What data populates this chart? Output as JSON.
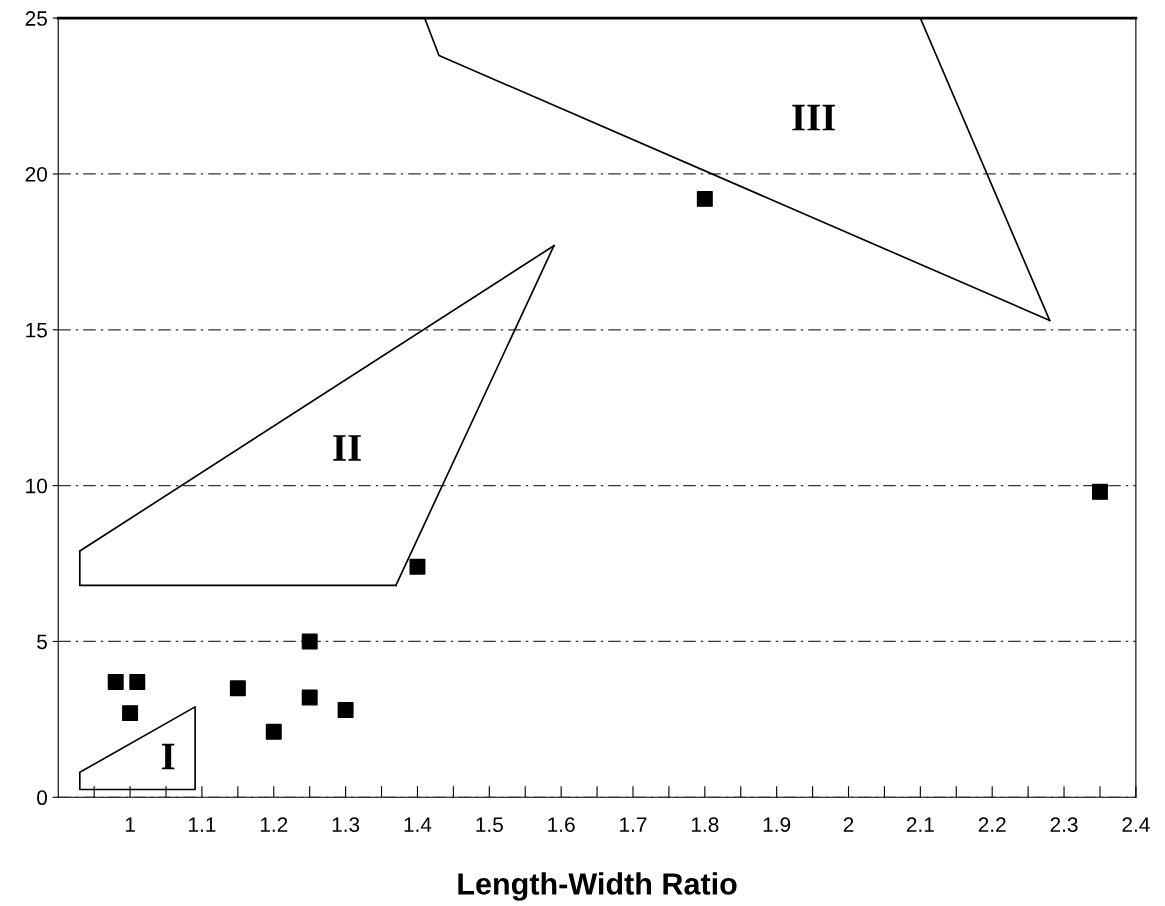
{
  "chart_data": {
    "type": "scatter",
    "xlabel": "Length-Width Ratio",
    "xlim": [
      0.9,
      2.4
    ],
    "ylim": [
      0,
      25
    ],
    "xticks": [
      {
        "value": 0.95,
        "label": null
      },
      1,
      {
        "value": 1.05,
        "label": null
      },
      1.1,
      {
        "value": 1.15,
        "label": null
      },
      1.2,
      {
        "value": 1.25,
        "label": null
      },
      1.3,
      {
        "value": 1.35,
        "label": null
      },
      1.4,
      {
        "value": 1.45,
        "label": null
      },
      1.5,
      {
        "value": 1.55,
        "label": null
      },
      1.6,
      {
        "value": 1.65,
        "label": null
      },
      1.7,
      {
        "value": 1.75,
        "label": null
      },
      1.8,
      {
        "value": 1.85,
        "label": null
      },
      1.9,
      {
        "value": 1.95,
        "label": null
      },
      2,
      {
        "value": 2.05,
        "label": null
      },
      2.1,
      {
        "value": 2.15,
        "label": null
      },
      2.2,
      {
        "value": 2.25,
        "label": null
      },
      2.3,
      {
        "value": 2.35,
        "label": null
      },
      2.4
    ],
    "yticks": [
      0,
      5,
      10,
      15,
      20,
      25
    ],
    "grid": "y",
    "series": [
      {
        "color": "#000000",
        "marker": "square",
        "x": [
          0.98,
          1.01,
          1.0,
          1.15,
          1.2,
          1.25,
          1.25,
          1.3,
          1.4,
          1.8,
          2.35
        ],
        "values": [
          3.7,
          3.7,
          2.7,
          3.5,
          2.1,
          5.0,
          3.2,
          2.8,
          7.4,
          19.2,
          9.8
        ]
      },
      {
        "type": "line",
        "color": "#000000",
        "x": [
          0.93,
          1.59
        ],
        "values": [
          7.9,
          17.7
        ]
      },
      {
        "type": "line",
        "color": "#000000",
        "x": [
          1.37,
          1.59
        ],
        "values": [
          6.8,
          17.7
        ]
      },
      {
        "type": "line",
        "color": "#000000",
        "x": [
          0.93,
          1.37
        ],
        "values": [
          6.8,
          6.8
        ]
      },
      {
        "type": "line",
        "color": "#000000",
        "x": [
          1.41,
          1.43,
          2.28
        ],
        "values": [
          25,
          23.8,
          15.3
        ]
      },
      {
        "type": "line",
        "color": "#000000",
        "x": [
          2.1,
          2.28
        ],
        "values": [
          25,
          15.3
        ]
      }
    ],
    "annotations": [
      "I",
      "II",
      "III"
    ]
  }
}
